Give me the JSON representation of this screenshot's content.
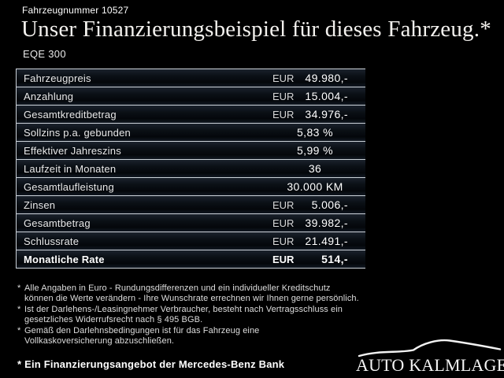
{
  "header": {
    "vehicle_number": "Fahrzeugnummer 10527",
    "title": "Unser Finanzierungsbeispiel für dieses Fahrzeug.*",
    "model": "EQE 300"
  },
  "table": {
    "rows": [
      {
        "label": "Fahrzeugpreis",
        "currency": "EUR",
        "value": "49.980,-",
        "bold": false
      },
      {
        "label": "Anzahlung",
        "currency": "EUR",
        "value": "15.004,-",
        "bold": false
      },
      {
        "label": "Gesamtkreditbetrag",
        "currency": "EUR",
        "value": "34.976,-",
        "bold": false
      },
      {
        "label": "Sollzins p.a. gebunden",
        "currency": "",
        "value": "5,83 %",
        "bold": false
      },
      {
        "label": "Effektiver Jahreszins",
        "currency": "",
        "value": "5,99 %",
        "bold": false
      },
      {
        "label": "Laufzeit in Monaten",
        "currency": "",
        "value": "36",
        "bold": false
      },
      {
        "label": "Gesamtlaufleistung",
        "currency": "",
        "value": "30.000 KM",
        "bold": false
      },
      {
        "label": "Zinsen",
        "currency": "EUR",
        "value": "5.006,-",
        "bold": false
      },
      {
        "label": "Gesamtbetrag",
        "currency": "EUR",
        "value": "39.982,-",
        "bold": false
      },
      {
        "label": "Schlussrate",
        "currency": "EUR",
        "value": "21.491,-",
        "bold": false
      },
      {
        "label": "Monatliche Rate",
        "currency": "EUR",
        "value": "514,-",
        "bold": true
      }
    ]
  },
  "footnotes": [
    {
      "marker": "*",
      "lines": [
        "Alle Angaben in Euro - Rundungsdifferenzen und ein individueller Kreditschutz",
        "können die Werte verändern - Ihre Wunschrate errechnen wir Ihnen gerne persönlich."
      ]
    },
    {
      "marker": "*",
      "lines": [
        "Ist der Darlehens-/Leasingnehmer Verbraucher, besteht nach Vertragsschluss ein",
        "gesetzliches Widerrufsrecht nach § 495 BGB."
      ]
    },
    {
      "marker": "*",
      "lines": [
        "Gemäß den Darlehnsbedingungen ist für das Fahrzeug eine",
        "Vollkaskoversicherung abzuschließen."
      ]
    }
  ],
  "footer": {
    "financing_note": "* Ein Finanzierungsangebot der Mercedes-Benz Bank",
    "dealer_name": "AUTO KALMLAGE"
  },
  "colors": {
    "background": "#000000",
    "table_line": "#ccd2d9",
    "row_gradient_top": "#1b222c",
    "row_gradient_bottom": "#121922",
    "text": "#ffffff"
  }
}
